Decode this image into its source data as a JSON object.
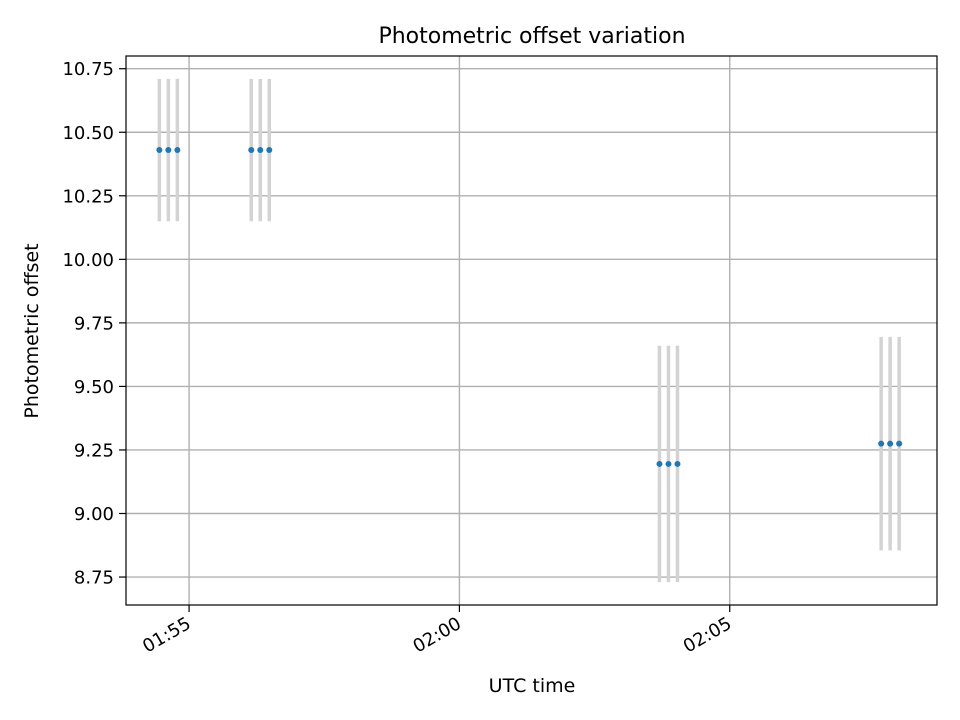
{
  "chart_data": {
    "type": "scatter",
    "title": "Photometric offset variation",
    "xlabel": "UTC time",
    "ylabel": "Photometric offset",
    "x_axis_type": "time",
    "xlim": [
      "01:53:50",
      "02:08:50"
    ],
    "ylim": [
      8.64,
      10.8
    ],
    "x_ticks": [
      {
        "value": "01:55:00",
        "label": "01:55"
      },
      {
        "value": "02:00:00",
        "label": "02:00"
      },
      {
        "value": "02:05:00",
        "label": "02:05"
      }
    ],
    "y_ticks": [
      {
        "value": 8.75,
        "label": "8.75"
      },
      {
        "value": 9.0,
        "label": "9.00"
      },
      {
        "value": 9.25,
        "label": "9.25"
      },
      {
        "value": 9.5,
        "label": "9.50"
      },
      {
        "value": 9.75,
        "label": "9.75"
      },
      {
        "value": 10.0,
        "label": "10.00"
      },
      {
        "value": 10.25,
        "label": "10.25"
      },
      {
        "value": 10.5,
        "label": "10.50"
      },
      {
        "value": 10.75,
        "label": "10.75"
      }
    ],
    "grid": true,
    "marker_color": "#1f77b4",
    "errorbar_color": "#d3d3d3",
    "points": [
      {
        "x": "01:54:27",
        "y": 10.43,
        "yerr_low": 10.15,
        "yerr_high": 10.71
      },
      {
        "x": "01:54:37",
        "y": 10.43,
        "yerr_low": 10.15,
        "yerr_high": 10.71
      },
      {
        "x": "01:54:47",
        "y": 10.43,
        "yerr_low": 10.15,
        "yerr_high": 10.71
      },
      {
        "x": "01:56:09",
        "y": 10.43,
        "yerr_low": 10.15,
        "yerr_high": 10.71
      },
      {
        "x": "01:56:19",
        "y": 10.43,
        "yerr_low": 10.15,
        "yerr_high": 10.71
      },
      {
        "x": "01:56:29",
        "y": 10.43,
        "yerr_low": 10.15,
        "yerr_high": 10.71
      },
      {
        "x": "02:03:42",
        "y": 9.195,
        "yerr_low": 8.73,
        "yerr_high": 9.66
      },
      {
        "x": "02:03:52",
        "y": 9.195,
        "yerr_low": 8.73,
        "yerr_high": 9.66
      },
      {
        "x": "02:04:02",
        "y": 9.195,
        "yerr_low": 8.73,
        "yerr_high": 9.66
      },
      {
        "x": "02:07:48",
        "y": 9.275,
        "yerr_low": 8.855,
        "yerr_high": 9.695
      },
      {
        "x": "02:07:58",
        "y": 9.275,
        "yerr_low": 8.855,
        "yerr_high": 9.695
      },
      {
        "x": "02:08:08",
        "y": 9.275,
        "yerr_low": 8.855,
        "yerr_high": 9.695
      }
    ]
  }
}
